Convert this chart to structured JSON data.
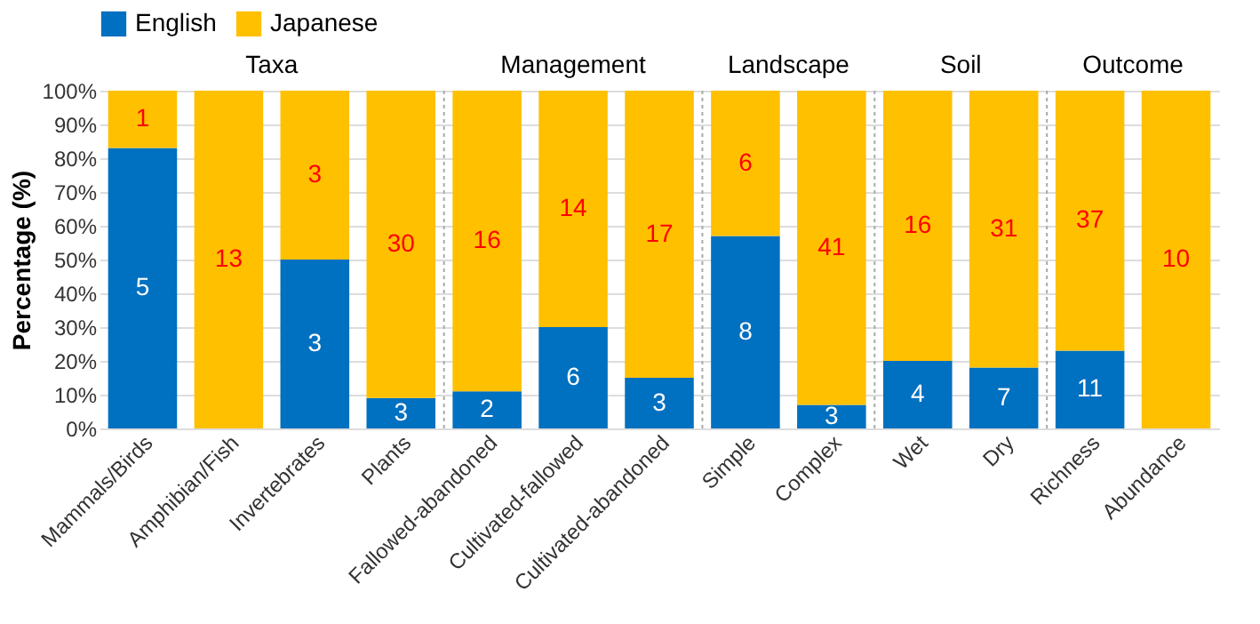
{
  "chart_data": {
    "type": "bar",
    "stacked": true,
    "ylabel": "Percentage (%)",
    "legend": "top",
    "grid": "y",
    "categories": [
      "Mammals/Birds",
      "Amphibian/Fish",
      "Invertebrates",
      "Plants",
      "Fallowed-abandoned",
      "Cultivated-fallowed",
      "Cultivated-abandoned",
      "Simple",
      "Complex",
      "Wet",
      "Dry",
      "Richness",
      "Abundance"
    ],
    "series": [
      {
        "name": "English",
        "color": "#0070c0",
        "values": [
          83,
          0,
          50,
          9,
          11,
          30,
          15,
          57,
          7,
          20,
          18,
          23,
          0
        ]
      },
      {
        "name": "Japanese",
        "color": "#ffc000",
        "values": [
          17,
          100,
          50,
          91,
          89,
          70,
          85,
          43,
          93,
          80,
          82,
          77,
          100
        ]
      }
    ],
    "ylim": [
      0,
      100
    ],
    "yticks": [
      {
        "value": 0,
        "label": "0%"
      },
      {
        "value": 10,
        "label": "10%"
      },
      {
        "value": 20,
        "label": "20%"
      },
      {
        "value": 30,
        "label": "30%"
      },
      {
        "value": 40,
        "label": "40%"
      },
      {
        "value": 50,
        "label": "50%"
      },
      {
        "value": 60,
        "label": "60%"
      },
      {
        "value": 70,
        "label": "70%"
      },
      {
        "value": 80,
        "label": "80%"
      },
      {
        "value": 90,
        "label": "90%"
      },
      {
        "value": 100,
        "label": "100%"
      }
    ],
    "annotations": [
      "Taxa",
      "Management",
      "Landscape",
      "Soil",
      "Outcome",
      "5",
      "3",
      "3",
      "2",
      "6",
      "3",
      "8",
      "3",
      "4",
      "7",
      "11",
      "1",
      "13",
      "3",
      "30",
      "16",
      "14",
      "17",
      "6",
      "41",
      "16",
      "31",
      "37",
      "10"
    ]
  }
}
